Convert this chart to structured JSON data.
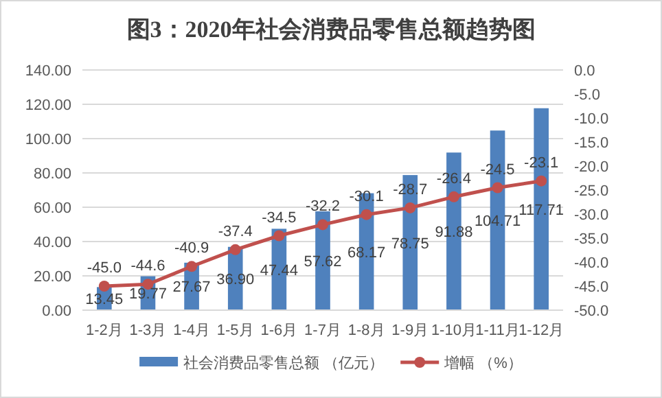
{
  "chart_data": {
    "type": "bar",
    "title": "图3：2020年社会消费品零售总额趋势图",
    "categories": [
      "1-2月",
      "1-3月",
      "1-4月",
      "1-5月",
      "1-6月",
      "1-7月",
      "1-8月",
      "1-9月",
      "1-10月",
      "1-11月",
      "1-12月"
    ],
    "series": [
      {
        "name": "社会消费品零售总额 （亿元）",
        "color": "#4f81bd",
        "values": [
          13.45,
          19.77,
          27.67,
          36.9,
          47.44,
          57.62,
          68.17,
          78.75,
          91.88,
          104.71,
          117.71
        ],
        "value_labels": [
          "13.45",
          "19.77",
          "27.67",
          "36.90",
          "47.44",
          "57.62",
          "68.17",
          "78.75",
          "91.88",
          "104.71",
          "117.71"
        ]
      },
      {
        "name": "增幅 （%）",
        "type": "line",
        "axis": "y2",
        "color": "#c0504d",
        "marker": "circle",
        "values": [
          -45.0,
          -44.6,
          -40.9,
          -37.4,
          -34.5,
          -32.2,
          -30.1,
          -28.7,
          -26.4,
          -24.5,
          -23.1
        ],
        "value_labels": [
          "-45.0",
          "-44.6",
          "-40.9",
          "-37.4",
          "-34.5",
          "-32.2",
          "-30.1",
          "-28.7",
          "-26.4",
          "-24.5",
          "-23.1"
        ]
      }
    ],
    "ylim": [
      0,
      140
    ],
    "yticks": [
      {
        "value": 0,
        "label": "0.00"
      },
      {
        "value": 20,
        "label": "20.00"
      },
      {
        "value": 40,
        "label": "40.00"
      },
      {
        "value": 60,
        "label": "60.00"
      },
      {
        "value": 80,
        "label": "80.00"
      },
      {
        "value": 100,
        "label": "100.00"
      },
      {
        "value": 120,
        "label": "120.00"
      },
      {
        "value": 140,
        "label": "140.00"
      }
    ],
    "y2lim": [
      -50,
      0
    ],
    "y2ticks": [
      {
        "value": 0,
        "label": "0.0"
      },
      {
        "value": -5,
        "label": "-5.0"
      },
      {
        "value": -10,
        "label": "-10.0"
      },
      {
        "value": -15,
        "label": "-15.0"
      },
      {
        "value": -20,
        "label": "-20.0"
      },
      {
        "value": -25,
        "label": "-25.0"
      },
      {
        "value": -30,
        "label": "-30.0"
      },
      {
        "value": -35,
        "label": "-35.0"
      },
      {
        "value": -40,
        "label": "-40.0"
      },
      {
        "value": -45,
        "label": "-45.0"
      },
      {
        "value": -50,
        "label": "-50.0"
      }
    ],
    "grid": "y",
    "legend": "bottom"
  }
}
